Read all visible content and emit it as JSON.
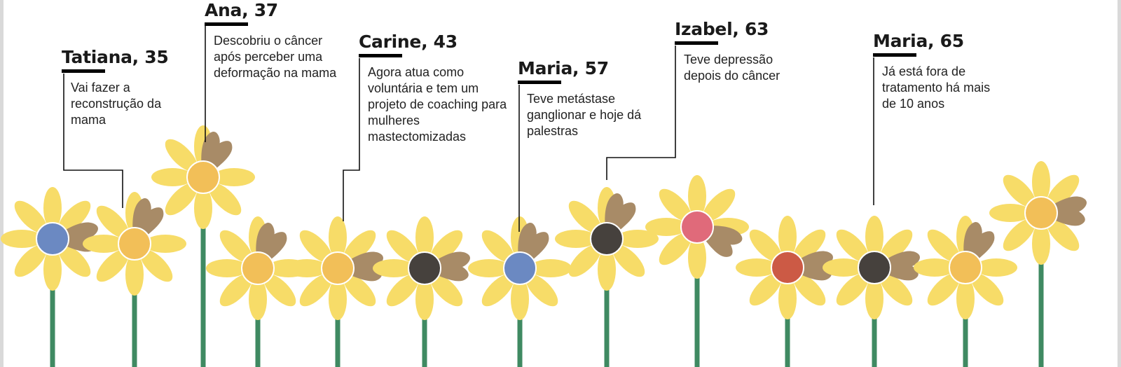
{
  "colors": {
    "stem": "#3f8a62",
    "petal_yellow": "#f7dc68",
    "petal_brown": "#a88b67",
    "center_orange": "#f2bf58",
    "center_blue": "#6b89c2",
    "center_dark": "#46413d",
    "center_pink": "#e06a7a",
    "center_red": "#cc5a45",
    "text": "#1a1a1a",
    "connector": "#111111"
  },
  "profiles": [
    {
      "name": "Tatiana, 35",
      "description": "Vai fazer a reconstrução da mama"
    },
    {
      "name": "Ana, 37",
      "description": "Descobriu o câncer após perceber uma deformação na mama"
    },
    {
      "name": "Carine, 43",
      "description": "Agora atua como voluntária e tem um projeto de coaching para mulheres mastectomizadas"
    },
    {
      "name": "Maria, 57",
      "description": "Teve metástase ganglionar e hoje dá palestras"
    },
    {
      "name": "Izabel, 63",
      "description": "Teve depressão depois do câncer"
    },
    {
      "name": "Maria, 65",
      "description": "Já está fora de tratamento há mais de 10 anos"
    }
  ],
  "flowers": [
    {
      "center": "center_blue",
      "brown_petal": "right"
    },
    {
      "center": "center_orange",
      "brown_petal": "top-right"
    },
    {
      "center": "center_orange",
      "brown_petal": "top-right"
    },
    {
      "center": "center_orange",
      "brown_petal": "top-right"
    },
    {
      "center": "center_orange",
      "brown_petal": "right"
    },
    {
      "center": "center_dark",
      "brown_petal": "right"
    },
    {
      "center": "center_blue",
      "brown_petal": "top-right"
    },
    {
      "center": "center_dark",
      "brown_petal": "top-right"
    },
    {
      "center": "center_pink",
      "brown_petal": "bottom-right"
    },
    {
      "center": "center_red",
      "brown_petal": "right"
    },
    {
      "center": "center_dark",
      "brown_petal": "right"
    },
    {
      "center": "center_orange",
      "brown_petal": "top-right"
    },
    {
      "center": "center_orange",
      "brown_petal": "right"
    }
  ]
}
